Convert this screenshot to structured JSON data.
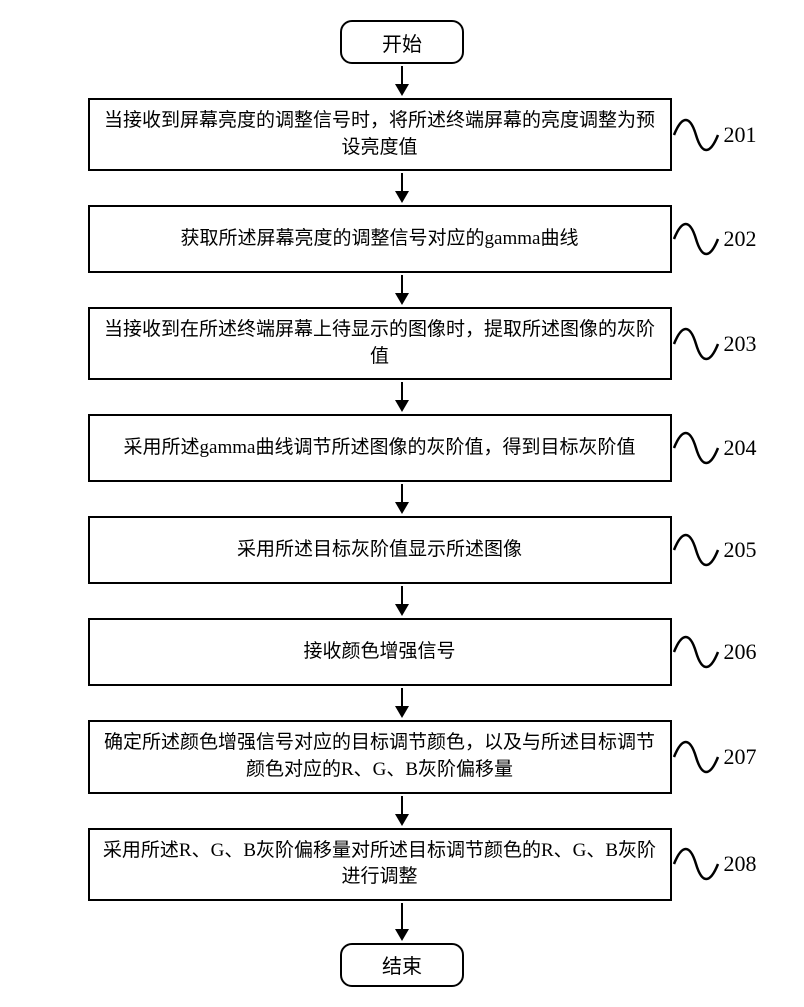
{
  "flow": {
    "start_label": "开始",
    "end_label": "结束",
    "terminator_width": 120,
    "terminator_height": 40,
    "terminator_radius": 12,
    "process_width": 560,
    "font_size_process": 19,
    "font_size_label": 22,
    "border_color": "#000000",
    "background_color": "#ffffff",
    "arrow_shaft_short": 18,
    "arrow_shaft_long": 26,
    "steps": [
      {
        "num": "201",
        "text": "当接收到屏幕亮度的调整信号时，将所述终端屏幕的亮度调整为预设亮度值"
      },
      {
        "num": "202",
        "text": "获取所述屏幕亮度的调整信号对应的gamma曲线"
      },
      {
        "num": "203",
        "text": "当接收到在所述终端屏幕上待显示的图像时，提取所述图像的灰阶值"
      },
      {
        "num": "204",
        "text": "采用所述gamma曲线调节所述图像的灰阶值，得到目标灰阶值"
      },
      {
        "num": "205",
        "text": "采用所述目标灰阶值显示所述图像"
      },
      {
        "num": "206",
        "text": "接收颜色增强信号"
      },
      {
        "num": "207",
        "text": "确定所述颜色增强信号对应的目标调节颜色，以及与所述目标调节颜色对应的R、G、B灰阶偏移量"
      },
      {
        "num": "208",
        "text": "采用所述R、G、B灰阶偏移量对所述目标调节颜色的R、G、B灰阶进行调整"
      }
    ]
  }
}
